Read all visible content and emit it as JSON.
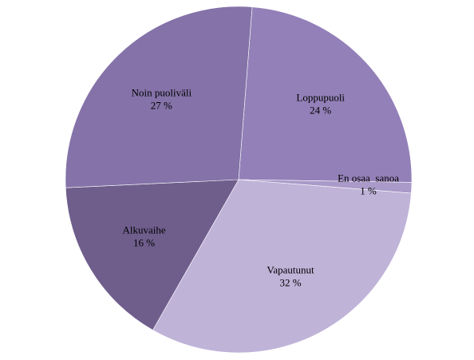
{
  "chart_data": {
    "type": "pie",
    "categories": [
      "Loppupuoli",
      "En osaa  sanoa",
      "Vapautunut",
      "Alkuvaihe",
      "Noin puoliväli"
    ],
    "values": [
      24,
      1,
      32,
      16,
      27
    ],
    "value_labels": [
      "24 %",
      "1 %",
      "32 %",
      "16 %",
      "27 %"
    ],
    "colors": [
      "#9380b8",
      "#a99ac9",
      "#bfb3d8",
      "#6f5e8c",
      "#8472a8"
    ]
  }
}
